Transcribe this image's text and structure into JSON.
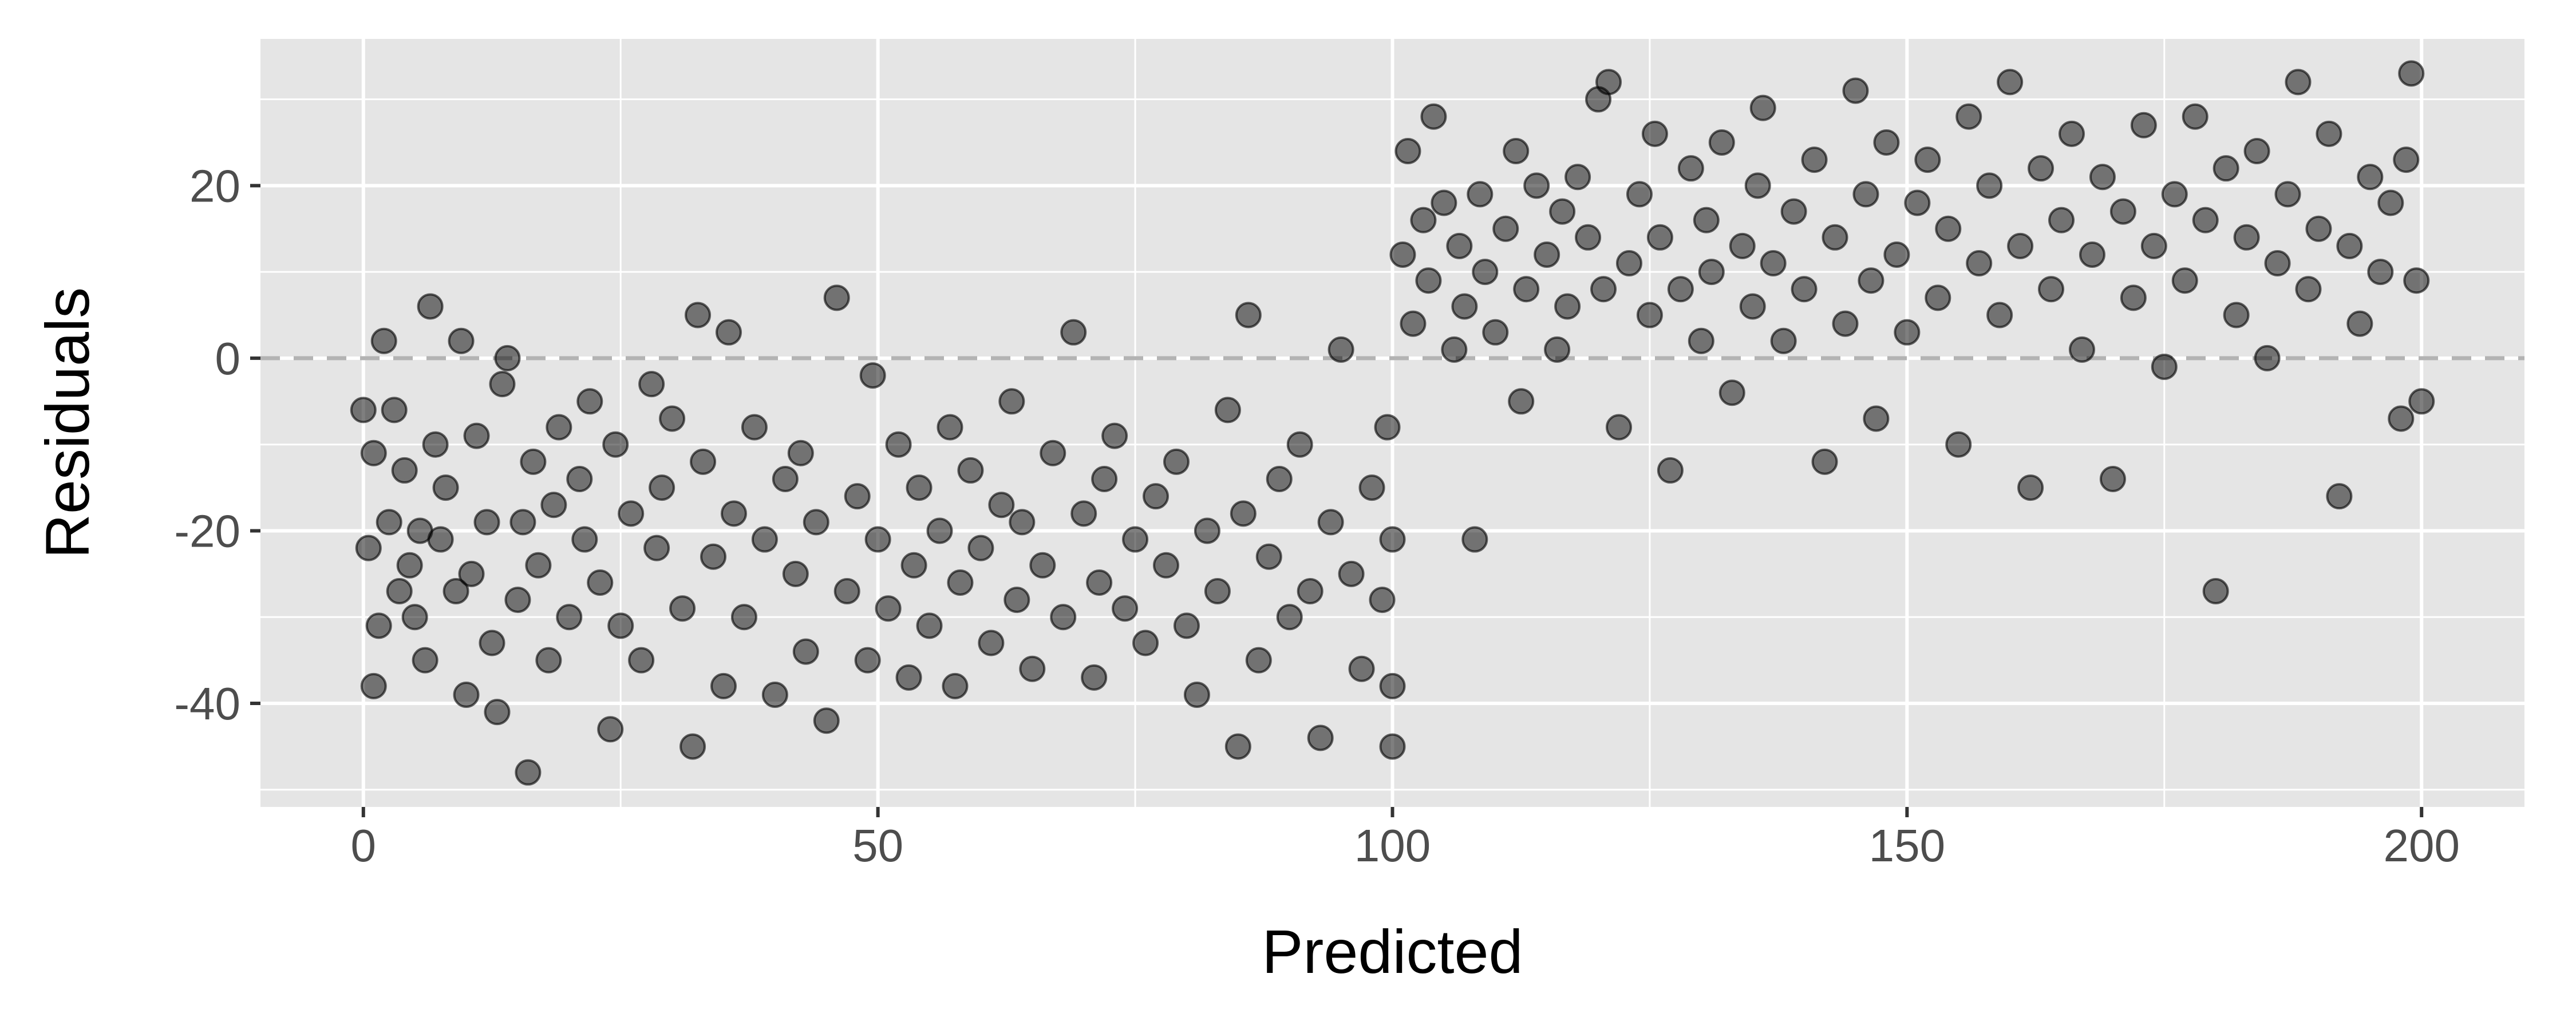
{
  "chart_data": {
    "type": "scatter",
    "title": "",
    "xlabel": "Predicted",
    "ylabel": "Residuals",
    "xlim": [
      -10,
      210
    ],
    "ylim": [
      -52,
      37
    ],
    "x_ticks": [
      0,
      50,
      100,
      150,
      200
    ],
    "y_ticks": [
      -40,
      -20,
      0,
      20
    ],
    "x_tick_labels": [
      "0",
      "50",
      "100",
      "150",
      "200"
    ],
    "y_tick_labels": [
      "-40",
      "-20",
      "0",
      "20"
    ],
    "grid": true,
    "reference_line": {
      "y": 0,
      "style": "dashed",
      "color": "#b3b3b3"
    },
    "panel_background": "#e5e5e5",
    "grid_color": "#ffffff",
    "point_color": "#000000",
    "point_opacity": 0.5,
    "series": [
      {
        "points": [
          [
            0,
            -6
          ],
          [
            0.5,
            -22
          ],
          [
            1,
            -11
          ],
          [
            1,
            -38
          ],
          [
            1.5,
            -31
          ],
          [
            2,
            2
          ],
          [
            2.5,
            -19
          ],
          [
            3,
            -6
          ],
          [
            3.5,
            -27
          ],
          [
            4,
            -13
          ],
          [
            4.5,
            -24
          ],
          [
            5,
            -30
          ],
          [
            5.5,
            -20
          ],
          [
            6,
            -35
          ],
          [
            6.5,
            6
          ],
          [
            7,
            -10
          ],
          [
            7.5,
            -21
          ],
          [
            8,
            -15
          ],
          [
            9,
            -27
          ],
          [
            9.5,
            2
          ],
          [
            10,
            -39
          ],
          [
            10.5,
            -25
          ],
          [
            11,
            -9
          ],
          [
            12,
            -19
          ],
          [
            12.5,
            -33
          ],
          [
            13,
            -41
          ],
          [
            13.5,
            -3
          ],
          [
            14,
            0
          ],
          [
            15,
            -28
          ],
          [
            15.5,
            -19
          ],
          [
            16,
            -48
          ],
          [
            16.5,
            -12
          ],
          [
            17,
            -24
          ],
          [
            18,
            -35
          ],
          [
            18.5,
            -17
          ],
          [
            19,
            -8
          ],
          [
            20,
            -30
          ],
          [
            21,
            -14
          ],
          [
            21.5,
            -21
          ],
          [
            22,
            -5
          ],
          [
            23,
            -26
          ],
          [
            24,
            -43
          ],
          [
            24.5,
            -10
          ],
          [
            25,
            -31
          ],
          [
            26,
            -18
          ],
          [
            27,
            -35
          ],
          [
            28,
            -3
          ],
          [
            28.5,
            -22
          ],
          [
            29,
            -15
          ],
          [
            30,
            -7
          ],
          [
            31,
            -29
          ],
          [
            32,
            -45
          ],
          [
            32.5,
            5
          ],
          [
            33,
            -12
          ],
          [
            34,
            -23
          ],
          [
            35,
            -38
          ],
          [
            35.5,
            3
          ],
          [
            36,
            -18
          ],
          [
            37,
            -30
          ],
          [
            38,
            -8
          ],
          [
            39,
            -21
          ],
          [
            40,
            -39
          ],
          [
            41,
            -14
          ],
          [
            42,
            -25
          ],
          [
            42.5,
            -11
          ],
          [
            43,
            -34
          ],
          [
            44,
            -19
          ],
          [
            45,
            -42
          ],
          [
            46,
            7
          ],
          [
            47,
            -27
          ],
          [
            48,
            -16
          ],
          [
            49,
            -35
          ],
          [
            49.5,
            -2
          ],
          [
            50,
            -21
          ],
          [
            51,
            -29
          ],
          [
            52,
            -10
          ],
          [
            53,
            -37
          ],
          [
            53.5,
            -24
          ],
          [
            54,
            -15
          ],
          [
            55,
            -31
          ],
          [
            56,
            -20
          ],
          [
            57,
            -8
          ],
          [
            57.5,
            -38
          ],
          [
            58,
            -26
          ],
          [
            59,
            -13
          ],
          [
            60,
            -22
          ],
          [
            61,
            -33
          ],
          [
            62,
            -17
          ],
          [
            63,
            -5
          ],
          [
            63.5,
            -28
          ],
          [
            64,
            -19
          ],
          [
            65,
            -36
          ],
          [
            66,
            -24
          ],
          [
            67,
            -11
          ],
          [
            68,
            -30
          ],
          [
            69,
            3
          ],
          [
            70,
            -18
          ],
          [
            71,
            -37
          ],
          [
            71.5,
            -26
          ],
          [
            72,
            -14
          ],
          [
            73,
            -9
          ],
          [
            74,
            -29
          ],
          [
            75,
            -21
          ],
          [
            76,
            -33
          ],
          [
            77,
            -16
          ],
          [
            78,
            -24
          ],
          [
            79,
            -12
          ],
          [
            80,
            -31
          ],
          [
            81,
            -39
          ],
          [
            82,
            -20
          ],
          [
            83,
            -27
          ],
          [
            84,
            -6
          ],
          [
            85,
            -45
          ],
          [
            85.5,
            -18
          ],
          [
            86,
            5
          ],
          [
            87,
            -35
          ],
          [
            88,
            -23
          ],
          [
            89,
            -14
          ],
          [
            90,
            -30
          ],
          [
            91,
            -10
          ],
          [
            92,
            -27
          ],
          [
            93,
            -44
          ],
          [
            94,
            -19
          ],
          [
            95,
            1
          ],
          [
            96,
            -25
          ],
          [
            97,
            -36
          ],
          [
            98,
            -15
          ],
          [
            99,
            -28
          ],
          [
            99.5,
            -8
          ],
          [
            100,
            -21
          ],
          [
            100,
            -45
          ],
          [
            100,
            -38
          ],
          [
            101,
            12
          ],
          [
            101.5,
            24
          ],
          [
            102,
            4
          ],
          [
            103,
            16
          ],
          [
            103.5,
            9
          ],
          [
            104,
            28
          ],
          [
            105,
            18
          ],
          [
            106,
            1
          ],
          [
            106.5,
            13
          ],
          [
            107,
            6
          ],
          [
            108,
            -21
          ],
          [
            108.5,
            19
          ],
          [
            109,
            10
          ],
          [
            110,
            3
          ],
          [
            111,
            15
          ],
          [
            112,
            24
          ],
          [
            112.5,
            -5
          ],
          [
            113,
            8
          ],
          [
            114,
            20
          ],
          [
            115,
            12
          ],
          [
            116,
            1
          ],
          [
            116.5,
            17
          ],
          [
            117,
            6
          ],
          [
            118,
            21
          ],
          [
            119,
            14
          ],
          [
            120,
            30
          ],
          [
            120.5,
            8
          ],
          [
            121,
            32
          ],
          [
            122,
            -8
          ],
          [
            123,
            11
          ],
          [
            124,
            19
          ],
          [
            125,
            5
          ],
          [
            125.5,
            26
          ],
          [
            126,
            14
          ],
          [
            127,
            -13
          ],
          [
            128,
            8
          ],
          [
            129,
            22
          ],
          [
            130,
            2
          ],
          [
            130.5,
            16
          ],
          [
            131,
            10
          ],
          [
            132,
            25
          ],
          [
            133,
            -4
          ],
          [
            134,
            13
          ],
          [
            135,
            6
          ],
          [
            135.5,
            20
          ],
          [
            136,
            29
          ],
          [
            137,
            11
          ],
          [
            138,
            2
          ],
          [
            139,
            17
          ],
          [
            140,
            8
          ],
          [
            141,
            23
          ],
          [
            142,
            -12
          ],
          [
            143,
            14
          ],
          [
            144,
            4
          ],
          [
            145,
            31
          ],
          [
            146,
            19
          ],
          [
            146.5,
            9
          ],
          [
            147,
            -7
          ],
          [
            148,
            25
          ],
          [
            149,
            12
          ],
          [
            150,
            3
          ],
          [
            151,
            18
          ],
          [
            152,
            23
          ],
          [
            153,
            7
          ],
          [
            154,
            15
          ],
          [
            155,
            -10
          ],
          [
            156,
            28
          ],
          [
            157,
            11
          ],
          [
            158,
            20
          ],
          [
            159,
            5
          ],
          [
            160,
            32
          ],
          [
            161,
            13
          ],
          [
            162,
            -15
          ],
          [
            163,
            22
          ],
          [
            164,
            8
          ],
          [
            165,
            16
          ],
          [
            166,
            26
          ],
          [
            167,
            1
          ],
          [
            168,
            12
          ],
          [
            169,
            21
          ],
          [
            170,
            -14
          ],
          [
            171,
            17
          ],
          [
            172,
            7
          ],
          [
            173,
            27
          ],
          [
            174,
            13
          ],
          [
            175,
            -1
          ],
          [
            176,
            19
          ],
          [
            177,
            9
          ],
          [
            178,
            28
          ],
          [
            179,
            16
          ],
          [
            180,
            -27
          ],
          [
            181,
            22
          ],
          [
            182,
            5
          ],
          [
            183,
            14
          ],
          [
            184,
            24
          ],
          [
            185,
            0
          ],
          [
            186,
            11
          ],
          [
            187,
            19
          ],
          [
            188,
            32
          ],
          [
            189,
            8
          ],
          [
            190,
            15
          ],
          [
            191,
            26
          ],
          [
            192,
            -16
          ],
          [
            193,
            13
          ],
          [
            194,
            4
          ],
          [
            195,
            21
          ],
          [
            196,
            10
          ],
          [
            197,
            18
          ],
          [
            198,
            -7
          ],
          [
            198.5,
            23
          ],
          [
            199,
            33
          ],
          [
            199.5,
            9
          ],
          [
            200,
            -5
          ]
        ]
      }
    ]
  }
}
